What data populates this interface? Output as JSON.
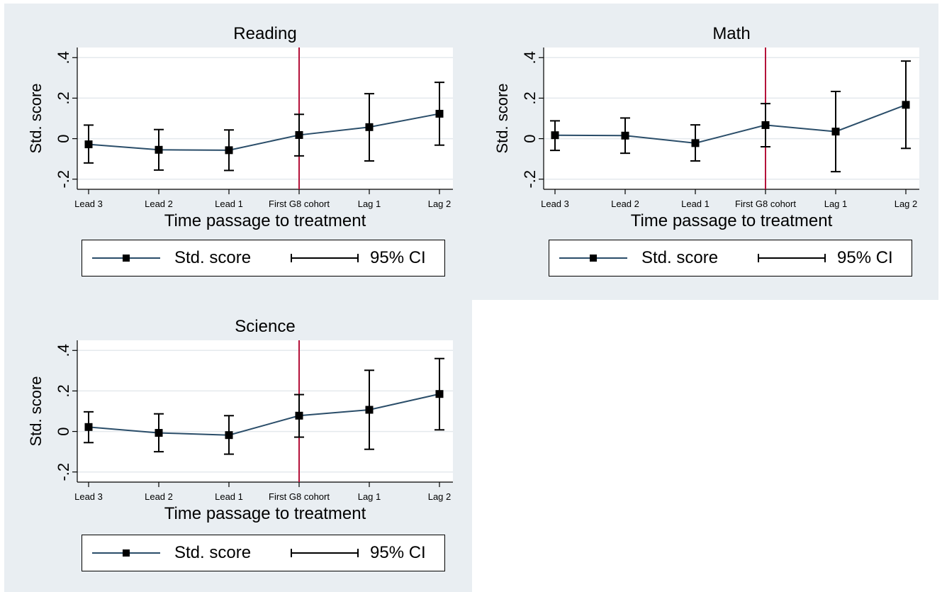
{
  "colors": {
    "background": "#e9eef2",
    "plot_area": "#ffffff",
    "line": "#2a4d69",
    "marker": "#000000",
    "ci": "#000000",
    "vline": "#b5123a",
    "grid": "#e4e9ed"
  },
  "legend": {
    "series_label": "Std. score",
    "ci_label": "95% CI"
  },
  "chart_data": [
    {
      "type": "line",
      "title": "Reading",
      "xlabel": "Time passage to treatment",
      "ylabel": "Std. score",
      "categories": [
        "Lead 3",
        "Lead 2",
        "Lead 1",
        "First G8 cohort",
        "Lag 1",
        "Lag 2"
      ],
      "yticks": [
        "-.2",
        "0",
        ".2",
        ".4"
      ],
      "ylim": [
        -0.25,
        0.45
      ],
      "treatment_line_at": "First G8 cohort",
      "grid": true,
      "series": [
        {
          "name": "Std. score",
          "values": [
            -0.028,
            -0.055,
            -0.057,
            0.018,
            0.057,
            0.123
          ]
        },
        {
          "name": "95% CI",
          "lower": [
            -0.12,
            -0.155,
            -0.157,
            -0.085,
            -0.11,
            -0.032
          ],
          "upper": [
            0.067,
            0.045,
            0.043,
            0.12,
            0.222,
            0.278
          ]
        }
      ]
    },
    {
      "type": "line",
      "title": "Math",
      "xlabel": "Time passage to treatment",
      "ylabel": "Std. score",
      "categories": [
        "Lead 3",
        "Lead 2",
        "Lead 1",
        "First G8 cohort",
        "Lag 1",
        "Lag 2"
      ],
      "yticks": [
        "-.2",
        "0",
        ".2",
        ".4"
      ],
      "ylim": [
        -0.25,
        0.45
      ],
      "treatment_line_at": "First G8 cohort",
      "grid": true,
      "series": [
        {
          "name": "Std. score",
          "values": [
            0.017,
            0.015,
            -0.022,
            0.067,
            0.035,
            0.167
          ]
        },
        {
          "name": "95% CI",
          "lower": [
            -0.058,
            -0.072,
            -0.11,
            -0.04,
            -0.163,
            -0.048
          ],
          "upper": [
            0.088,
            0.102,
            0.068,
            0.173,
            0.233,
            0.383
          ]
        }
      ]
    },
    {
      "type": "line",
      "title": "Science",
      "xlabel": "Time passage to treatment",
      "ylabel": "Std. score",
      "categories": [
        "Lead 3",
        "Lead 2",
        "Lead 1",
        "First G8 cohort",
        "Lag 1",
        "Lag 2"
      ],
      "yticks": [
        "-.2",
        "0",
        ".2",
        ".4"
      ],
      "ylim": [
        -0.25,
        0.45
      ],
      "treatment_line_at": "First G8 cohort",
      "grid": true,
      "series": [
        {
          "name": "Std. score",
          "values": [
            0.022,
            -0.007,
            -0.018,
            0.078,
            0.107,
            0.185
          ]
        },
        {
          "name": "95% CI",
          "lower": [
            -0.055,
            -0.1,
            -0.112,
            -0.028,
            -0.088,
            0.008
          ],
          "upper": [
            0.097,
            0.087,
            0.078,
            0.182,
            0.302,
            0.36
          ]
        }
      ]
    }
  ]
}
